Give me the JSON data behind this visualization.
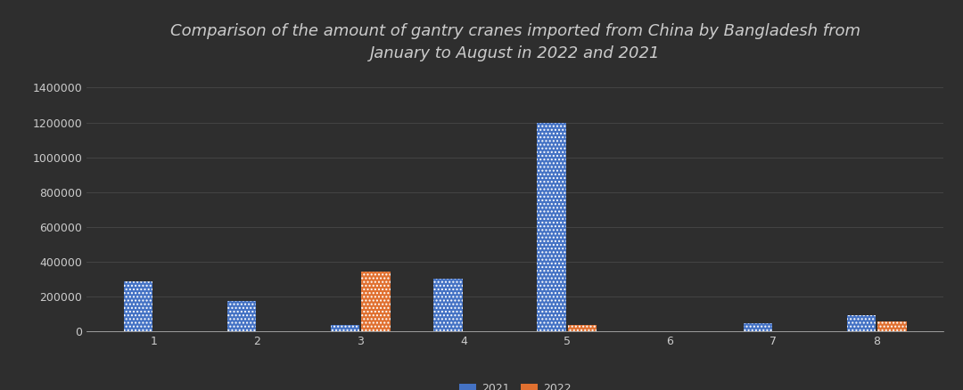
{
  "title": "Comparison of the amount of gantry cranes imported from China by Bangladesh from\nJanuary to August in 2022 and 2021",
  "months": [
    1,
    2,
    3,
    4,
    5,
    6,
    7,
    8
  ],
  "values_2021": [
    290000,
    175000,
    38000,
    305000,
    1200000,
    0,
    45000,
    93000
  ],
  "values_2022": [
    0,
    0,
    345000,
    0,
    35000,
    0,
    0,
    58000
  ],
  "color_2021": "#4472c4",
  "color_2022": "#e07030",
  "bg_color": "#2e2e2e",
  "plot_bg_color": "#2e2e2e",
  "text_color": "#cccccc",
  "grid_color": "#484848",
  "ylim": [
    0,
    1500000
  ],
  "yticks": [
    0,
    200000,
    400000,
    600000,
    800000,
    1000000,
    1200000,
    1400000
  ],
  "bar_width": 0.28,
  "title_fontsize": 13,
  "tick_fontsize": 9,
  "legend_labels": [
    "2021",
    "2022"
  ],
  "hatch": "...."
}
